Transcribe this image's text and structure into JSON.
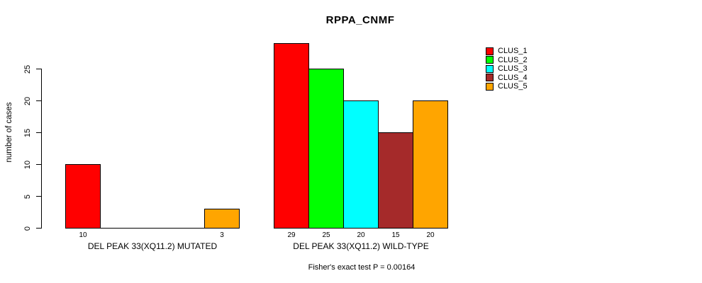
{
  "chart_data": {
    "type": "bar",
    "title": "RPPA_CNMF",
    "ylabel": "number of cases",
    "yticks": [
      0,
      5,
      10,
      15,
      20,
      25
    ],
    "ylim": [
      0,
      29
    ],
    "grid": false,
    "legend_position": "right",
    "categories": [
      "DEL PEAK 33(XQ11.2) MUTATED",
      "DEL PEAK 33(XQ11.2) WILD-TYPE"
    ],
    "series": [
      {
        "name": "CLUS_1",
        "color": "#ff0000",
        "values": [
          10,
          29
        ]
      },
      {
        "name": "CLUS_2",
        "color": "#00ff00",
        "values": [
          0,
          25
        ]
      },
      {
        "name": "CLUS_3",
        "color": "#00ffff",
        "values": [
          0,
          20
        ]
      },
      {
        "name": "CLUS_4",
        "color": "#a52a2a",
        "values": [
          0,
          15
        ]
      },
      {
        "name": "CLUS_5",
        "color": "#ffa500",
        "values": [
          3,
          20
        ]
      }
    ],
    "bar_value_labels": {
      "shown": true,
      "note": "value printed under each nonzero bar",
      "group1": [
        10,
        3
      ],
      "group2": [
        29,
        25,
        20,
        15,
        20
      ]
    },
    "footnote": "Fisher's exact test P = 0.00164"
  }
}
